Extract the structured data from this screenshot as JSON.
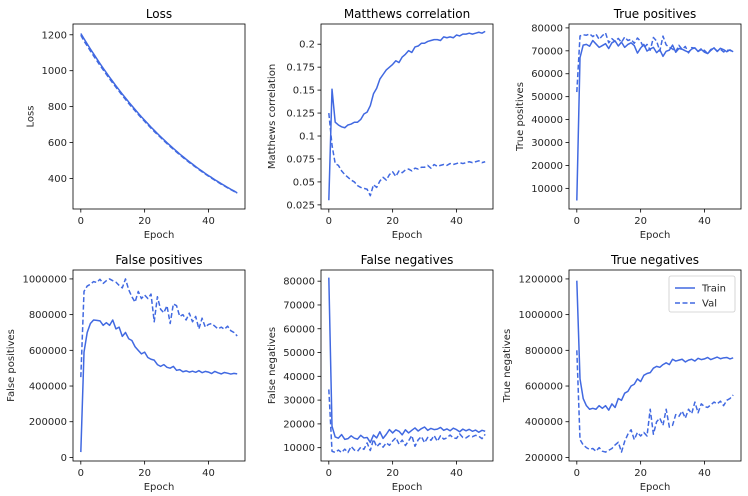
{
  "colors": {
    "line": "#4169e1",
    "axis": "#000000",
    "background": "#ffffff"
  },
  "chart_data": [
    {
      "type": "line",
      "title": "Loss",
      "xlabel": "Epoch",
      "ylabel": "Loss",
      "xlim": [
        -2.45,
        51.45
      ],
      "ylim": [
        230,
        1260
      ],
      "xticks": [
        0,
        20,
        40
      ],
      "yticks": [
        400,
        600,
        800,
        1000,
        1200
      ],
      "x": [
        0,
        1,
        2,
        3,
        4,
        5,
        6,
        7,
        8,
        9,
        10,
        11,
        12,
        13,
        14,
        15,
        16,
        17,
        18,
        19,
        20,
        21,
        22,
        23,
        24,
        25,
        26,
        27,
        28,
        29,
        30,
        31,
        32,
        33,
        34,
        35,
        36,
        37,
        38,
        39,
        40,
        41,
        42,
        43,
        44,
        45,
        46,
        47,
        48,
        49
      ],
      "series": [
        {
          "name": "Train",
          "dash": "solid",
          "values": [
            1207,
            1178,
            1149,
            1121,
            1094,
            1067,
            1040,
            1014,
            989,
            964,
            940,
            916,
            893,
            870,
            848,
            826,
            805,
            784,
            763,
            743,
            724,
            705,
            686,
            668,
            650,
            633,
            616,
            599,
            583,
            567,
            552,
            536,
            522,
            507,
            493,
            480,
            466,
            453,
            441,
            428,
            416,
            405,
            393,
            382,
            371,
            361,
            350,
            340,
            331,
            320
          ]
        },
        {
          "name": "Val",
          "dash": "dashed",
          "values": [
            1198,
            1165,
            1138,
            1110,
            1083,
            1056,
            1030,
            1005,
            980,
            955,
            931,
            908,
            885,
            862,
            840,
            818,
            797,
            777,
            756,
            737,
            718,
            699,
            680,
            662,
            645,
            628,
            611,
            594,
            578,
            563,
            547,
            532,
            517,
            503,
            489,
            476,
            463,
            450,
            437,
            425,
            413,
            401,
            390,
            379,
            368,
            358,
            348,
            338,
            328,
            317
          ]
        }
      ]
    },
    {
      "type": "line",
      "title": "Matthews correlation",
      "xlabel": "Epoch",
      "ylabel": "Matthews correlation",
      "xlim": [
        -2.45,
        51.45
      ],
      "ylim": [
        0.0205,
        0.222
      ],
      "xticks": [
        0,
        20,
        40
      ],
      "yticks": [
        0.025,
        0.05,
        0.075,
        0.1,
        0.125,
        0.15,
        0.175,
        0.2
      ],
      "x": [
        0,
        1,
        2,
        3,
        4,
        5,
        6,
        7,
        8,
        9,
        10,
        11,
        12,
        13,
        14,
        15,
        16,
        17,
        18,
        19,
        20,
        21,
        22,
        23,
        24,
        25,
        26,
        27,
        28,
        29,
        30,
        31,
        32,
        33,
        34,
        35,
        36,
        37,
        38,
        39,
        40,
        41,
        42,
        43,
        44,
        45,
        46,
        47,
        48,
        49
      ],
      "series": [
        {
          "name": "Train",
          "dash": "solid",
          "values": [
            0.03,
            0.151,
            0.115,
            0.112,
            0.11,
            0.109,
            0.112,
            0.113,
            0.115,
            0.115,
            0.118,
            0.124,
            0.126,
            0.133,
            0.146,
            0.152,
            0.162,
            0.167,
            0.172,
            0.175,
            0.178,
            0.182,
            0.18,
            0.186,
            0.189,
            0.193,
            0.191,
            0.197,
            0.198,
            0.201,
            0.201,
            0.203,
            0.204,
            0.205,
            0.205,
            0.204,
            0.208,
            0.207,
            0.208,
            0.207,
            0.21,
            0.209,
            0.211,
            0.211,
            0.212,
            0.211,
            0.212,
            0.213,
            0.212,
            0.214
          ]
        },
        {
          "name": "Val",
          "dash": "dashed",
          "values": [
            0.125,
            0.09,
            0.07,
            0.068,
            0.062,
            0.058,
            0.055,
            0.052,
            0.05,
            0.046,
            0.044,
            0.043,
            0.042,
            0.035,
            0.047,
            0.044,
            0.051,
            0.055,
            0.052,
            0.058,
            0.061,
            0.056,
            0.062,
            0.06,
            0.063,
            0.064,
            0.062,
            0.065,
            0.064,
            0.066,
            0.066,
            0.068,
            0.065,
            0.069,
            0.067,
            0.068,
            0.069,
            0.068,
            0.07,
            0.069,
            0.07,
            0.071,
            0.07,
            0.071,
            0.072,
            0.071,
            0.072,
            0.073,
            0.071,
            0.072
          ]
        }
      ]
    },
    {
      "type": "line",
      "title": "True positives",
      "xlabel": "Epoch",
      "ylabel": "True positives",
      "xlim": [
        -2.45,
        51.45
      ],
      "ylim": [
        1000,
        81700
      ],
      "xticks": [
        0,
        20,
        40
      ],
      "yticks": [
        10000,
        20000,
        30000,
        40000,
        50000,
        60000,
        70000,
        80000
      ],
      "x": [
        0,
        1,
        2,
        3,
        4,
        5,
        6,
        7,
        8,
        9,
        10,
        11,
        12,
        13,
        14,
        15,
        16,
        17,
        18,
        19,
        20,
        21,
        22,
        23,
        24,
        25,
        26,
        27,
        28,
        29,
        30,
        31,
        32,
        33,
        34,
        35,
        36,
        37,
        38,
        39,
        40,
        41,
        42,
        43,
        44,
        45,
        46,
        47,
        48,
        49
      ],
      "series": [
        {
          "name": "Train",
          "dash": "solid",
          "values": [
            4700,
            67000,
            72500,
            72800,
            72000,
            74500,
            73000,
            71500,
            72300,
            73100,
            71000,
            73500,
            74300,
            72100,
            73800,
            71500,
            72800,
            73500,
            72300,
            69000,
            71200,
            72800,
            69900,
            70800,
            71500,
            69200,
            70500,
            67600,
            69800,
            70300,
            72500,
            69400,
            71000,
            70700,
            70000,
            69400,
            70800,
            71300,
            69700,
            70600,
            69400,
            68800,
            70200,
            71300,
            69700,
            71100,
            70500,
            69600,
            70400,
            69600
          ]
        },
        {
          "name": "Val",
          "dash": "dashed",
          "values": [
            52000,
            76500,
            77000,
            76800,
            77400,
            76200,
            77300,
            75000,
            76600,
            77800,
            73500,
            75300,
            74100,
            75400,
            73700,
            76000,
            74500,
            75000,
            73300,
            75600,
            74100,
            71200,
            72800,
            70300,
            75800,
            74300,
            69900,
            76400,
            72600,
            71500,
            70800,
            69500,
            72400,
            70600,
            71900,
            69100,
            71400,
            71200,
            69800,
            70900,
            70200,
            68800,
            70600,
            71100,
            69900,
            70700,
            69500,
            70200,
            70300,
            69300
          ]
        }
      ]
    },
    {
      "type": "line",
      "title": "False positives",
      "xlabel": "Epoch",
      "ylabel": "False positives",
      "xlim": [
        -2.45,
        51.45
      ],
      "ylim": [
        -20000,
        1050000
      ],
      "xticks": [
        0,
        20,
        40
      ],
      "yticks": [
        0,
        200000,
        400000,
        600000,
        800000,
        1000000
      ],
      "x": [
        0,
        1,
        2,
        3,
        4,
        5,
        6,
        7,
        8,
        9,
        10,
        11,
        12,
        13,
        14,
        15,
        16,
        17,
        18,
        19,
        20,
        21,
        22,
        23,
        24,
        25,
        26,
        27,
        28,
        29,
        30,
        31,
        32,
        33,
        34,
        35,
        36,
        37,
        38,
        39,
        40,
        41,
        42,
        43,
        44,
        45,
        46,
        47,
        48,
        49
      ],
      "series": [
        {
          "name": "Train",
          "dash": "solid",
          "values": [
            30000,
            590000,
            700000,
            750000,
            770000,
            768000,
            765000,
            740000,
            755000,
            740000,
            770000,
            720000,
            730000,
            678000,
            700000,
            665000,
            655000,
            620000,
            600000,
            580000,
            590000,
            560000,
            550000,
            545000,
            520000,
            510000,
            520000,
            505000,
            500000,
            510000,
            488000,
            492000,
            480000,
            485000,
            478000,
            483000,
            477000,
            486000,
            475000,
            482000,
            478000,
            470000,
            482000,
            474000,
            468000,
            476000,
            472000,
            467000,
            471000,
            468000
          ]
        },
        {
          "name": "Val",
          "dash": "dashed",
          "values": [
            450000,
            930000,
            960000,
            970000,
            985000,
            980000,
            998000,
            975000,
            990000,
            1000000,
            990000,
            982000,
            964000,
            950000,
            1000000,
            940000,
            900000,
            870000,
            930000,
            890000,
            910000,
            890000,
            915000,
            760000,
            900000,
            830000,
            810000,
            850000,
            750000,
            860000,
            850000,
            790000,
            800000,
            770000,
            808000,
            760000,
            790000,
            720000,
            780000,
            730000,
            745000,
            750000,
            735000,
            720000,
            730000,
            718000,
            735000,
            710000,
            700000,
            680000
          ]
        }
      ]
    },
    {
      "type": "line",
      "title": "False negatives",
      "xlabel": "Epoch",
      "ylabel": "False negatives",
      "xlim": [
        -2.45,
        51.45
      ],
      "ylim": [
        4400,
        84700
      ],
      "xticks": [
        0,
        20,
        40
      ],
      "yticks": [
        10000,
        20000,
        30000,
        40000,
        50000,
        60000,
        70000,
        80000
      ],
      "x": [
        0,
        1,
        2,
        3,
        4,
        5,
        6,
        7,
        8,
        9,
        10,
        11,
        12,
        13,
        14,
        15,
        16,
        17,
        18,
        19,
        20,
        21,
        22,
        23,
        24,
        25,
        26,
        27,
        28,
        29,
        30,
        31,
        32,
        33,
        34,
        35,
        36,
        37,
        38,
        39,
        40,
        41,
        42,
        43,
        44,
        45,
        46,
        47,
        48,
        49
      ],
      "series": [
        {
          "name": "Train",
          "dash": "solid",
          "values": [
            81500,
            19000,
            14500,
            14000,
            15500,
            13500,
            13800,
            15000,
            14000,
            13600,
            15200,
            14100,
            14300,
            12200,
            15300,
            14100,
            16700,
            13900,
            15600,
            17600,
            16200,
            17500,
            16900,
            15400,
            17500,
            16200,
            17300,
            18300,
            17000,
            18000,
            18700,
            17300,
            18100,
            17600,
            17800,
            18500,
            17300,
            17900,
            17100,
            18200,
            17600,
            16700,
            17800,
            17100,
            17700,
            16900,
            17400,
            16500,
            17300,
            16900
          ]
        },
        {
          "name": "Val",
          "dash": "dashed",
          "values": [
            34500,
            8500,
            8000,
            9000,
            8000,
            9400,
            8000,
            10500,
            9000,
            8500,
            10200,
            9300,
            12000,
            8800,
            13500,
            10400,
            11800,
            10200,
            12000,
            11000,
            12800,
            14200,
            11500,
            13200,
            10900,
            12900,
            15100,
            10600,
            13300,
            14700,
            12100,
            14300,
            13100,
            15100,
            12700,
            15000,
            13600,
            14100,
            15300,
            14100,
            13900,
            15800,
            14300,
            14100,
            15000,
            14600,
            15200,
            14800,
            13800,
            15600
          ]
        }
      ]
    },
    {
      "type": "line",
      "title": "True negatives",
      "xlabel": "Epoch",
      "ylabel": "True negatives",
      "xlim": [
        -2.45,
        51.45
      ],
      "ylim": [
        180000,
        1250000
      ],
      "xticks": [
        0,
        20,
        40
      ],
      "yticks": [
        200000,
        400000,
        600000,
        800000,
        1000000,
        1200000
      ],
      "legend": "top-right",
      "x": [
        0,
        1,
        2,
        3,
        4,
        5,
        6,
        7,
        8,
        9,
        10,
        11,
        12,
        13,
        14,
        15,
        16,
        17,
        18,
        19,
        20,
        21,
        22,
        23,
        24,
        25,
        26,
        27,
        28,
        29,
        30,
        31,
        32,
        33,
        34,
        35,
        36,
        37,
        38,
        39,
        40,
        41,
        42,
        43,
        44,
        45,
        46,
        47,
        48,
        49
      ],
      "series": [
        {
          "name": "Train",
          "dash": "solid",
          "values": [
            1190000,
            640000,
            530000,
            490000,
            470000,
            475000,
            470000,
            490000,
            475000,
            490000,
            465000,
            500000,
            480000,
            530000,
            520000,
            560000,
            570000,
            600000,
            610000,
            640000,
            625000,
            660000,
            670000,
            675000,
            700000,
            710000,
            705000,
            720000,
            730000,
            720000,
            750000,
            740000,
            745000,
            750000,
            735000,
            745000,
            750000,
            740000,
            755000,
            748000,
            752000,
            760000,
            748000,
            755000,
            762000,
            753000,
            758000,
            760000,
            752000,
            758000
          ]
        },
        {
          "name": "Val",
          "dash": "dashed",
          "values": [
            800000,
            300000,
            270000,
            255000,
            245000,
            250000,
            235000,
            255000,
            235000,
            230000,
            240000,
            250000,
            270000,
            285000,
            230000,
            290000,
            330000,
            355000,
            300000,
            340000,
            320000,
            340000,
            320000,
            470000,
            330000,
            400000,
            420000,
            380000,
            470000,
            370000,
            380000,
            440000,
            430000,
            460000,
            420000,
            470000,
            445000,
            510000,
            450000,
            500000,
            485000,
            480000,
            495000,
            510000,
            500000,
            515000,
            490000,
            520000,
            530000,
            550000
          ]
        }
      ]
    }
  ],
  "legend": {
    "items": [
      {
        "label": "Train",
        "dash": "solid"
      },
      {
        "label": "Val",
        "dash": "dashed"
      }
    ]
  }
}
